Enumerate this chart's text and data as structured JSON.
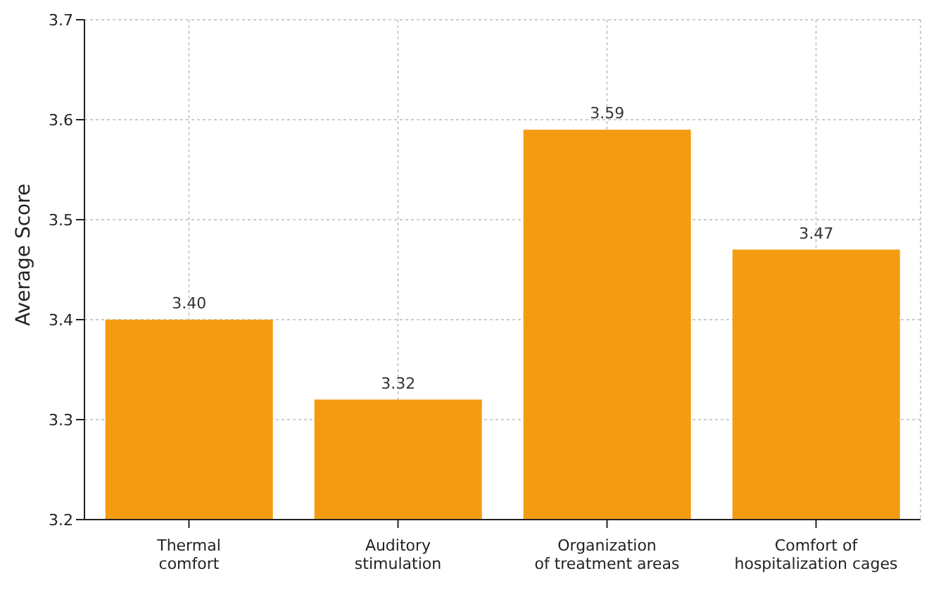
{
  "chart_data": {
    "type": "bar",
    "ylabel": "Average Score",
    "categories": [
      "Thermal\ncomfort",
      "Auditory\nstimulation",
      "Organization\nof treatment areas",
      "Comfort of\nhospitalization cages"
    ],
    "values": [
      3.4,
      3.32,
      3.59,
      3.47
    ],
    "value_labels": [
      "3.40",
      "3.32",
      "3.59",
      "3.47"
    ],
    "color": "#f39c12",
    "ylim": [
      3.2,
      3.7
    ],
    "yticks": [
      3.2,
      3.3,
      3.4,
      3.5,
      3.6,
      3.7
    ],
    "grid": true
  }
}
